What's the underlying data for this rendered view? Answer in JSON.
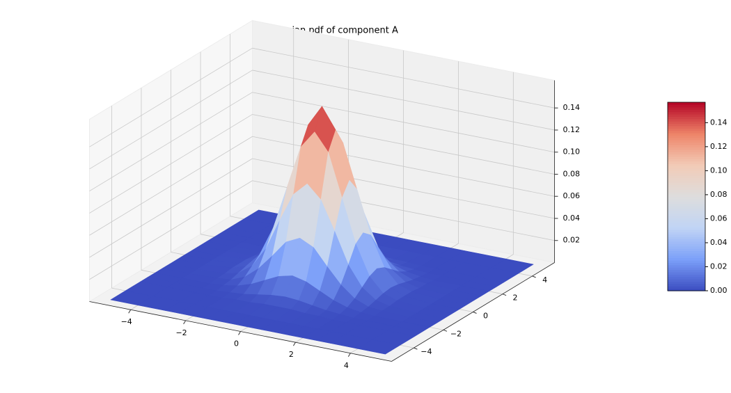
{
  "chart_data": {
    "type": "surface3d",
    "title": "the Gaussian pdf of component A",
    "x": [
      -5,
      -4,
      -3,
      -2.5,
      -2,
      -1.5,
      -1,
      -0.5,
      0,
      0.5,
      1,
      1.5,
      2,
      2.5,
      3,
      4,
      5
    ],
    "y": [
      -5,
      -4,
      -3,
      -2.5,
      -2,
      -1.5,
      -1,
      -0.5,
      0,
      0.5,
      1,
      1.5,
      2,
      2.5,
      3,
      4,
      5
    ],
    "z": [
      [
        0,
        0,
        0,
        0,
        0,
        0,
        0,
        0,
        0,
        0,
        0,
        0,
        0,
        0,
        0,
        0,
        0
      ],
      [
        0,
        0,
        0,
        0,
        0,
        0,
        0,
        0,
        0,
        0,
        0,
        0,
        0,
        0,
        0,
        0,
        0
      ],
      [
        0,
        0,
        0,
        0,
        0,
        0.001,
        0.001,
        0.002,
        0.002,
        0.002,
        0.001,
        0.001,
        0,
        0,
        0,
        0,
        0
      ],
      [
        0,
        0,
        0,
        0,
        0.001,
        0.002,
        0.004,
        0.006,
        0.007,
        0.006,
        0.004,
        0.002,
        0.001,
        0,
        0,
        0,
        0
      ],
      [
        0,
        0,
        0,
        0.001,
        0.003,
        0.007,
        0.013,
        0.019,
        0.022,
        0.019,
        0.013,
        0.007,
        0.003,
        0.001,
        0,
        0,
        0
      ],
      [
        0,
        0,
        0.001,
        0.002,
        0.007,
        0.017,
        0.031,
        0.046,
        0.052,
        0.046,
        0.031,
        0.017,
        0.007,
        0.002,
        0.001,
        0,
        0
      ],
      [
        0,
        0,
        0.001,
        0.004,
        0.013,
        0.031,
        0.059,
        0.085,
        0.097,
        0.085,
        0.059,
        0.031,
        0.013,
        0.004,
        0.001,
        0,
        0
      ],
      [
        0,
        0,
        0.002,
        0.006,
        0.019,
        0.046,
        0.085,
        0.124,
        0.14,
        0.124,
        0.085,
        0.046,
        0.019,
        0.006,
        0.002,
        0,
        0
      ],
      [
        0,
        0,
        0.002,
        0.007,
        0.022,
        0.052,
        0.097,
        0.14,
        0.159,
        0.14,
        0.097,
        0.052,
        0.022,
        0.007,
        0.002,
        0,
        0
      ],
      [
        0,
        0,
        0.002,
        0.006,
        0.019,
        0.046,
        0.085,
        0.124,
        0.14,
        0.124,
        0.085,
        0.046,
        0.019,
        0.006,
        0.002,
        0,
        0
      ],
      [
        0,
        0,
        0.001,
        0.004,
        0.013,
        0.031,
        0.059,
        0.085,
        0.097,
        0.085,
        0.059,
        0.031,
        0.013,
        0.004,
        0.001,
        0,
        0
      ],
      [
        0,
        0,
        0.001,
        0.002,
        0.007,
        0.017,
        0.031,
        0.046,
        0.052,
        0.046,
        0.031,
        0.017,
        0.007,
        0.002,
        0.001,
        0,
        0
      ],
      [
        0,
        0,
        0,
        0.001,
        0.003,
        0.007,
        0.013,
        0.019,
        0.022,
        0.019,
        0.013,
        0.007,
        0.003,
        0.001,
        0,
        0,
        0
      ],
      [
        0,
        0,
        0,
        0,
        0.001,
        0.002,
        0.004,
        0.006,
        0.007,
        0.006,
        0.004,
        0.002,
        0.001,
        0,
        0,
        0,
        0
      ],
      [
        0,
        0,
        0,
        0,
        0,
        0.001,
        0.001,
        0.002,
        0.002,
        0.002,
        0.001,
        0.001,
        0,
        0,
        0,
        0,
        0
      ],
      [
        0,
        0,
        0,
        0,
        0,
        0,
        0,
        0,
        0,
        0,
        0,
        0,
        0,
        0,
        0,
        0,
        0
      ],
      [
        0,
        0,
        0,
        0,
        0,
        0,
        0,
        0,
        0,
        0,
        0,
        0,
        0,
        0,
        0,
        0,
        0
      ]
    ],
    "xlim": [
      -5.5,
      5.5
    ],
    "ylim": [
      -5.5,
      5.5
    ],
    "zlim": [
      0,
      0.165
    ],
    "xticks": [
      {
        "value": -4,
        "label": "−4"
      },
      {
        "value": -2,
        "label": "−2"
      },
      0,
      2,
      4
    ],
    "yticks": [
      {
        "value": -4,
        "label": "−4"
      },
      {
        "value": -2,
        "label": "−2"
      },
      0,
      2,
      4
    ],
    "zticks": [
      0.02,
      0.04,
      0.06,
      0.08,
      {
        "value": 0.1,
        "label": "0.10"
      },
      0.12,
      0.14
    ],
    "grid": true,
    "colormap": [
      "#3b4cc0",
      "#7b9ff9",
      "#c0d4f5",
      "#dddddd",
      "#f2cbb7",
      "#ee8468",
      "#b40426"
    ],
    "clim": [
      0,
      0.157
    ],
    "cticks": [
      {
        "value": 0,
        "label": "0.00"
      },
      0.02,
      0.04,
      0.06,
      0.08,
      {
        "value": 0.1,
        "label": "0.10"
      },
      0.12,
      0.14
    ]
  }
}
